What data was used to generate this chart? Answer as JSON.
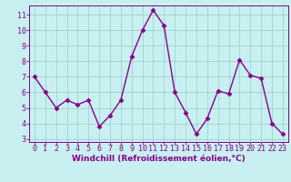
{
  "x": [
    0,
    1,
    2,
    3,
    4,
    5,
    6,
    7,
    8,
    9,
    10,
    11,
    12,
    13,
    14,
    15,
    16,
    17,
    18,
    19,
    20,
    21,
    22,
    23
  ],
  "y": [
    7,
    6,
    5,
    5.5,
    5.2,
    5.5,
    3.8,
    4.5,
    5.5,
    8.3,
    10,
    11.3,
    10.3,
    6,
    4.7,
    3.3,
    4.3,
    6.1,
    5.9,
    8.1,
    7.1,
    6.9,
    4.0,
    3.3
  ],
  "line_color": "#880088",
  "marker": "D",
  "marker_size": 2.5,
  "line_width": 1.0,
  "bg_color": "#c8f0f0",
  "grid_color": "#99cccc",
  "xlabel": "Windchill (Refroidissement éolien,°C)",
  "xlabel_color": "#880088",
  "xlabel_fontsize": 6.5,
  "tick_color": "#880088",
  "tick_fontsize": 6.0,
  "ylim": [
    2.8,
    11.6
  ],
  "xlim": [
    -0.5,
    23.5
  ],
  "yticks": [
    3,
    4,
    5,
    6,
    7,
    8,
    9,
    10,
    11
  ],
  "xticks": [
    0,
    1,
    2,
    3,
    4,
    5,
    6,
    7,
    8,
    9,
    10,
    11,
    12,
    13,
    14,
    15,
    16,
    17,
    18,
    19,
    20,
    21,
    22,
    23
  ]
}
